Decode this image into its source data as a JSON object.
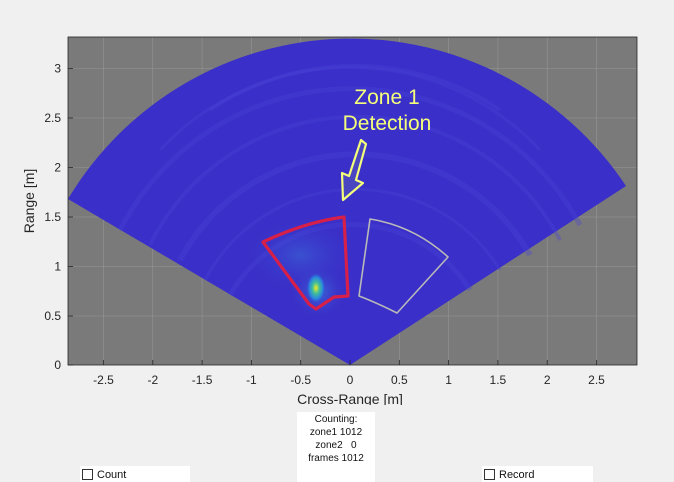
{
  "plot": {
    "x_axis_label": "Cross-Range [m]",
    "y_axis_label": "Range [m]",
    "x_ticks": [
      "-2.5",
      "-2",
      "-1.5",
      "-1",
      "-0.5",
      "0",
      "0.5",
      "1",
      "1.5",
      "2",
      "2.5"
    ],
    "y_ticks": [
      "0",
      "0.5",
      "1",
      "1.5",
      "2",
      "2.5",
      "3"
    ],
    "background_color": "#7a7a7a",
    "heatmap_base_color": "#3a2fc8",
    "zone1_color": "#d6204a",
    "zone2_color": "#b9b9b9"
  },
  "annotation": {
    "line1": "Zone 1",
    "line2": "Detection",
    "color": "#f4ff7a"
  },
  "counting": {
    "title": "Counting:",
    "zone1": "zone1 1012",
    "zone2": "zone2   0",
    "frames": "frames 1012"
  },
  "controls": {
    "count_label": "Count",
    "record_label": "Record"
  }
}
